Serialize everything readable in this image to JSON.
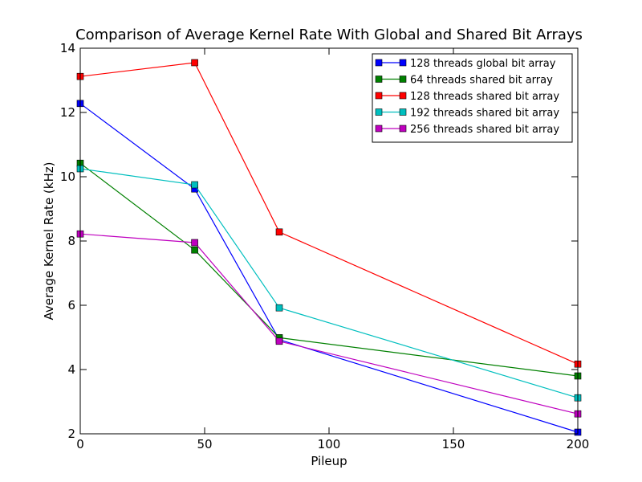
{
  "chart_data": {
    "type": "line",
    "title": "Comparison of Average Kernel Rate With Global and Shared Bit Arrays",
    "xlabel": "Pileup",
    "ylabel": "Average Kernel Rate (kHz)",
    "xlim": [
      0,
      200
    ],
    "ylim": [
      2,
      14
    ],
    "xticks": [
      "0",
      "50",
      "100",
      "150",
      "200"
    ],
    "yticks": [
      "2",
      "4",
      "6",
      "8",
      "10",
      "12",
      "14"
    ],
    "grid": false,
    "legend_position": "top-right",
    "x": [
      0,
      46,
      80,
      200
    ],
    "series": [
      {
        "name": "128 threads global bit array",
        "color": "#0000ff",
        "values": [
          12.28,
          9.62,
          4.93,
          2.05
        ]
      },
      {
        "name": "64 threads shared bit array",
        "color": "#008000",
        "values": [
          10.42,
          7.72,
          4.99,
          3.8
        ]
      },
      {
        "name": "128 threads shared bit array",
        "color": "#ff0000",
        "values": [
          13.12,
          13.55,
          8.28,
          4.17
        ]
      },
      {
        "name": "192 threads shared bit array",
        "color": "#00bfbf",
        "values": [
          10.25,
          9.75,
          5.92,
          3.12
        ]
      },
      {
        "name": "256 threads shared bit array",
        "color": "#bf00bf",
        "values": [
          8.22,
          7.95,
          4.88,
          2.62
        ]
      }
    ]
  }
}
